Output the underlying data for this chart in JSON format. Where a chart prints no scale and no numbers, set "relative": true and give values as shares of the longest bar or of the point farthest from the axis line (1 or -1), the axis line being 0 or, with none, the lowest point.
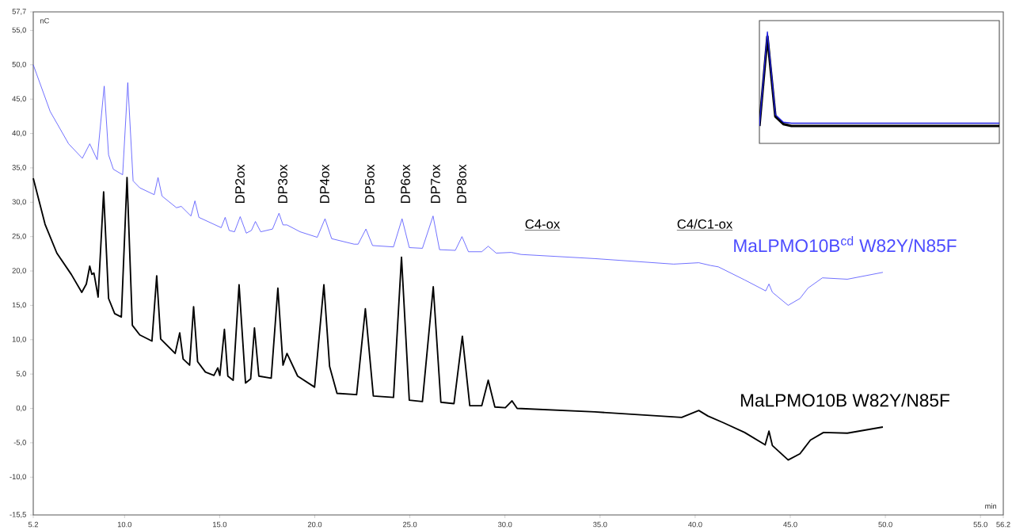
{
  "chart_data": [
    {
      "type": "line",
      "xlabel": "min",
      "ylabel": "nC",
      "xlim": [
        5.2,
        56.2
      ],
      "ylim": [
        -15.5,
        57.7
      ],
      "xticks": [
        {
          "value": 5.2,
          "label": "5.2"
        },
        {
          "value": 10,
          "label": "10.0"
        },
        {
          "value": 15,
          "label": "15.0"
        },
        {
          "value": 20,
          "label": "20.0"
        },
        {
          "value": 25,
          "label": "25.0"
        },
        {
          "value": 30,
          "label": "30.0"
        },
        {
          "value": 35,
          "label": "35.0"
        },
        {
          "value": 40,
          "label": "40.0"
        },
        {
          "value": 45,
          "label": "45.0"
        },
        {
          "value": 50,
          "label": "50.0"
        },
        {
          "value": 55,
          "label": "55.0"
        },
        {
          "value": 56.2,
          "label": "56.2"
        }
      ],
      "yticks": [
        {
          "value": 57.7,
          "label": "57,7"
        },
        {
          "value": 55,
          "label": "55,0"
        },
        {
          "value": 50,
          "label": "50,0"
        },
        {
          "value": 45,
          "label": "45,0"
        },
        {
          "value": 40,
          "label": "40,0"
        },
        {
          "value": 35,
          "label": "35,0"
        },
        {
          "value": 30,
          "label": "30,0"
        },
        {
          "value": 25,
          "label": "25,0"
        },
        {
          "value": 20,
          "label": "20,0"
        },
        {
          "value": 15,
          "label": "15,0"
        },
        {
          "value": 10,
          "label": "10,0"
        },
        {
          "value": 5,
          "label": "5,0"
        },
        {
          "value": 0,
          "label": "0,0"
        },
        {
          "value": -5,
          "label": "-5,0"
        },
        {
          "value": -10,
          "label": "-10,0"
        },
        {
          "value": -15.5,
          "label": "-15,5"
        }
      ],
      "series": [
        {
          "name": "MaLPMO10B$^{cd}$ W82Y/N85F",
          "color": "#4d4dff",
          "x": [
            5.2,
            6.09,
            7.06,
            7.78,
            8.17,
            8.56,
            8.93,
            9.16,
            9.41,
            9.9,
            10.17,
            10.45,
            10.8,
            11.56,
            11.76,
            11.97,
            12.73,
            12.98,
            13.49,
            13.7,
            13.91,
            15.08,
            15.29,
            15.5,
            15.78,
            16.08,
            16.4,
            16.67,
            16.88,
            17.16,
            17.78,
            18.12,
            18.33,
            18.54,
            19.23,
            20.13,
            20.54,
            20.89,
            22.07,
            22.28,
            22.69,
            23.04,
            24.14,
            24.59,
            24.97,
            25.66,
            26.22,
            26.56,
            27.39,
            27.74,
            28.08,
            28.78,
            29.12,
            29.54,
            30.33,
            30.85,
            34.72,
            38.87,
            40.19,
            40.81,
            41.22,
            42.6,
            43.71,
            43.88,
            44.06,
            44.89,
            45.51,
            45.93,
            46.69,
            48.0,
            49.87
          ],
          "values": [
            50.0,
            43.2,
            38.5,
            36.4,
            38.5,
            36.2,
            46.9,
            36.9,
            34.8,
            34.0,
            47.4,
            33.1,
            32.1,
            31.1,
            33.6,
            30.9,
            29.2,
            29.4,
            28.0,
            30.2,
            27.8,
            26.3,
            27.8,
            25.9,
            25.7,
            27.9,
            25.5,
            25.9,
            27.2,
            25.7,
            26.1,
            28.4,
            26.7,
            26.7,
            25.7,
            24.9,
            27.6,
            24.7,
            23.9,
            23.9,
            26.1,
            23.7,
            23.5,
            27.6,
            23.4,
            23.3,
            28.0,
            23.1,
            23.0,
            25.0,
            22.8,
            22.8,
            23.6,
            22.6,
            22.7,
            22.4,
            21.8,
            21.0,
            21.2,
            20.8,
            20.6,
            18.7,
            17.1,
            18.1,
            16.9,
            15.0,
            16.0,
            17.5,
            19.0,
            18.8,
            19.8
          ]
        },
        {
          "name": "MaLPMO10B W82Y/N85F",
          "color": "#000000",
          "x": [
            5.2,
            5.82,
            6.44,
            7.2,
            7.75,
            7.99,
            8.17,
            8.28,
            8.39,
            8.61,
            8.9,
            9.16,
            9.48,
            9.83,
            10.13,
            10.41,
            10.8,
            11.44,
            11.69,
            11.9,
            12.66,
            12.9,
            13.08,
            13.42,
            13.63,
            13.84,
            14.25,
            14.7,
            14.9,
            15.01,
            15.25,
            15.43,
            15.71,
            16.02,
            16.36,
            16.63,
            16.83,
            17.06,
            17.71,
            18.06,
            18.33,
            18.54,
            19.1,
            19.99,
            20.48,
            20.78,
            21.17,
            22.2,
            22.66,
            23.08,
            24.14,
            24.56,
            24.97,
            25.66,
            26.23,
            26.63,
            27.32,
            27.76,
            28.15,
            28.78,
            29.12,
            29.47,
            30.02,
            30.37,
            30.64,
            34.72,
            39.29,
            40.19,
            40.67,
            41.5,
            42.6,
            43.68,
            43.88,
            44.06,
            44.89,
            45.51,
            46.06,
            46.75,
            48.0,
            49.87
          ],
          "values": [
            33.5,
            26.8,
            22.6,
            19.5,
            16.9,
            18.1,
            20.7,
            19.5,
            19.7,
            16.2,
            31.5,
            16.0,
            13.8,
            13.3,
            33.6,
            12.1,
            10.7,
            9.8,
            19.3,
            10.1,
            8.0,
            11.0,
            7.2,
            6.3,
            14.8,
            6.8,
            5.3,
            4.8,
            5.9,
            4.8,
            11.5,
            4.7,
            4.1,
            18.0,
            3.7,
            4.3,
            11.7,
            4.7,
            4.4,
            17.5,
            6.3,
            8.0,
            4.7,
            3.1,
            18.0,
            6.1,
            2.2,
            2.0,
            14.5,
            1.8,
            1.6,
            22.0,
            1.2,
            1.0,
            17.7,
            0.9,
            0.7,
            10.5,
            0.4,
            0.4,
            4.1,
            0.2,
            0.1,
            1.1,
            0.0,
            -0.5,
            -1.3,
            -0.3,
            -1.1,
            -2.1,
            -3.5,
            -5.3,
            -3.3,
            -5.4,
            -7.5,
            -6.6,
            -4.6,
            -3.5,
            -3.6,
            -2.7
          ]
        }
      ],
      "annotations": [
        "DP2ox",
        "DP3ox",
        "DP4ox",
        "DP5ox",
        "DP6ox",
        "DP7ox",
        "DP8ox",
        "C4-ox",
        "C4/C1-ox"
      ]
    },
    {
      "type": "line",
      "relative": true,
      "categories": [
        null,
        null,
        null,
        null,
        null,
        null,
        null,
        null,
        null,
        null,
        null,
        null,
        null,
        null,
        null,
        null,
        null,
        null,
        null,
        null,
        null,
        null,
        null,
        null,
        null,
        null,
        null,
        null,
        null,
        null,
        null
      ],
      "series": [
        {
          "color": "#000000",
          "values": [
            0,
            0.95,
            0.1,
            0.02,
            0,
            0,
            0,
            0,
            0,
            0,
            0,
            0,
            0,
            0,
            0,
            0,
            0,
            0,
            0,
            0,
            0,
            0,
            0,
            0,
            0,
            0,
            0,
            0,
            0,
            0,
            0
          ]
        },
        {
          "color": "#2020e0",
          "values": [
            0,
            1.0,
            0.12,
            0.04,
            0.03,
            0.03,
            0.03,
            0.03,
            0.03,
            0.03,
            0.03,
            0.03,
            0.03,
            0.03,
            0.03,
            0.03,
            0.03,
            0.03,
            0.03,
            0.03,
            0.03,
            0.03,
            0.03,
            0.03,
            0.03,
            0.03,
            0.03,
            0.03,
            0.03,
            0.03,
            0.03
          ]
        }
      ]
    }
  ]
}
